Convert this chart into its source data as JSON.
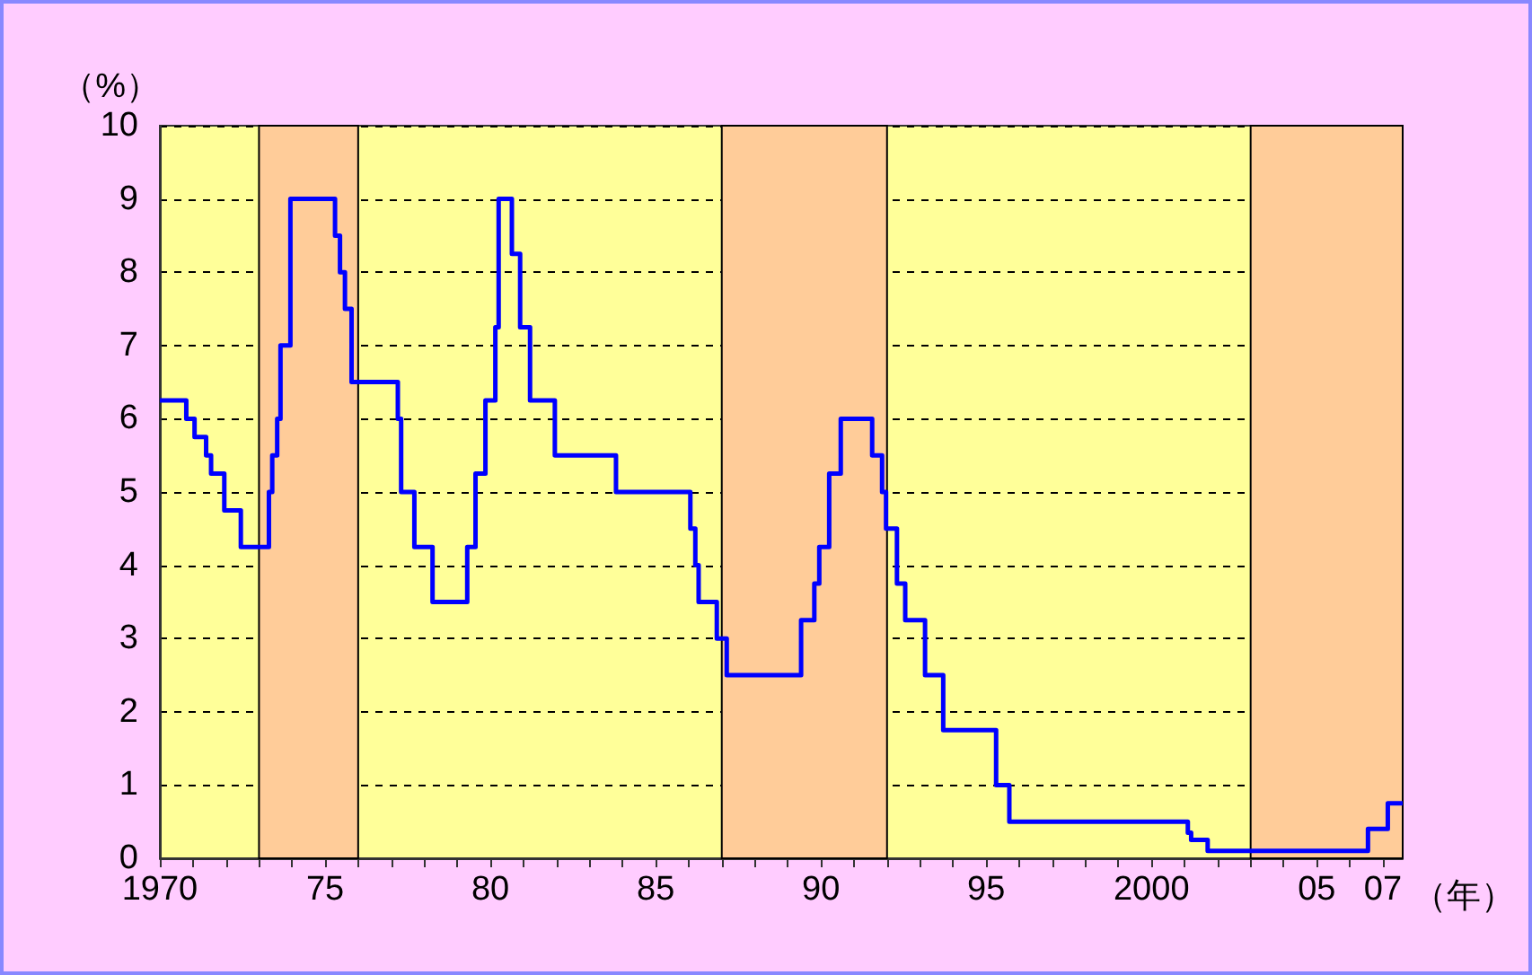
{
  "chart_data": {
    "type": "step",
    "ylabel": "（%）",
    "xlabel": "（年）",
    "xlim": [
      1970,
      2007.6
    ],
    "ylim": [
      0,
      10
    ],
    "yticks": [
      0,
      1,
      2,
      3,
      4,
      5,
      6,
      7,
      8,
      9,
      10
    ],
    "xticks": [
      {
        "value": 1971,
        "label": null
      },
      {
        "value": 1972,
        "label": null
      },
      {
        "value": 1973,
        "label": null
      },
      {
        "value": 1974,
        "label": null
      },
      {
        "value": 1976,
        "label": null
      },
      {
        "value": 1977,
        "label": null
      },
      {
        "value": 1978,
        "label": null
      },
      {
        "value": 1979,
        "label": null
      },
      {
        "value": 1981,
        "label": null
      },
      {
        "value": 1982,
        "label": null
      },
      {
        "value": 1983,
        "label": null
      },
      {
        "value": 1984,
        "label": null
      },
      {
        "value": 1986,
        "label": null
      },
      {
        "value": 1987,
        "label": null
      },
      {
        "value": 1988,
        "label": null
      },
      {
        "value": 1989,
        "label": null
      },
      {
        "value": 1991,
        "label": null
      },
      {
        "value": 1992,
        "label": null
      },
      {
        "value": 1993,
        "label": null
      },
      {
        "value": 1994,
        "label": null
      },
      {
        "value": 1996,
        "label": null
      },
      {
        "value": 1997,
        "label": null
      },
      {
        "value": 1998,
        "label": null
      },
      {
        "value": 1999,
        "label": null
      },
      {
        "value": 2001,
        "label": null
      },
      {
        "value": 2002,
        "label": null
      },
      {
        "value": 2003,
        "label": null
      },
      {
        "value": 2004,
        "label": null
      },
      {
        "value": 2006,
        "label": null
      },
      {
        "value": 1970,
        "label": "1970"
      },
      {
        "value": 1975,
        "label": "75"
      },
      {
        "value": 1980,
        "label": "80"
      },
      {
        "value": 1985,
        "label": "85"
      },
      {
        "value": 1990,
        "label": "90"
      },
      {
        "value": 1995,
        "label": "95"
      },
      {
        "value": 2000,
        "label": "2000"
      },
      {
        "value": 2005,
        "label": "05"
      },
      {
        "value": 2007,
        "label": "07"
      }
    ],
    "grid": "y",
    "marker": "none",
    "line_style": "solid",
    "bands": [
      {
        "axis": "x",
        "from": 1973,
        "to": 1976,
        "color": "#ffcc99"
      },
      {
        "axis": "x",
        "from": 1987,
        "to": 1992,
        "color": "#ffcc99"
      },
      {
        "axis": "x",
        "from": 2003,
        "to": 2007.6,
        "color": "#ffcc99"
      }
    ],
    "series": [
      {
        "color": "#0000ff",
        "x": [
          1970,
          1970.8,
          1971.05,
          1971.4,
          1971.55,
          1971.95,
          1972.45,
          1973.3,
          1973.4,
          1973.55,
          1973.65,
          1973.95,
          1975.3,
          1975.45,
          1975.6,
          1975.8,
          1977.2,
          1977.3,
          1977.7,
          1978.25,
          1979.3,
          1979.55,
          1979.85,
          1980.15,
          1980.25,
          1980.65,
          1980.9,
          1981.2,
          1981.95,
          1983.8,
          1986.05,
          1986.2,
          1986.3,
          1986.85,
          1987.15,
          1989.4,
          1989.8,
          1989.95,
          1990.25,
          1990.6,
          1991.55,
          1991.85,
          1991.97,
          1992.3,
          1992.55,
          1993.15,
          1993.7,
          1995.3,
          1995.7,
          2001.1,
          2001.2,
          2001.7,
          2006.55,
          2007.15,
          2007.6
        ],
        "values": [
          6.25,
          6,
          5.75,
          5.5,
          5.25,
          4.75,
          4.25,
          5,
          5.5,
          6,
          7,
          9,
          8.5,
          8,
          7.5,
          6.5,
          6,
          5,
          4.25,
          3.5,
          4.25,
          5.25,
          6.25,
          7.25,
          9,
          8.25,
          7.25,
          6.25,
          5.5,
          5,
          4.5,
          4,
          3.5,
          3,
          2.5,
          3.25,
          3.75,
          4.25,
          5.25,
          6,
          5.5,
          5,
          4.5,
          3.75,
          3.25,
          2.5,
          1.75,
          1,
          0.5,
          0.35,
          0.25,
          0.1,
          0.4,
          0.75,
          0.75
        ]
      }
    ]
  }
}
